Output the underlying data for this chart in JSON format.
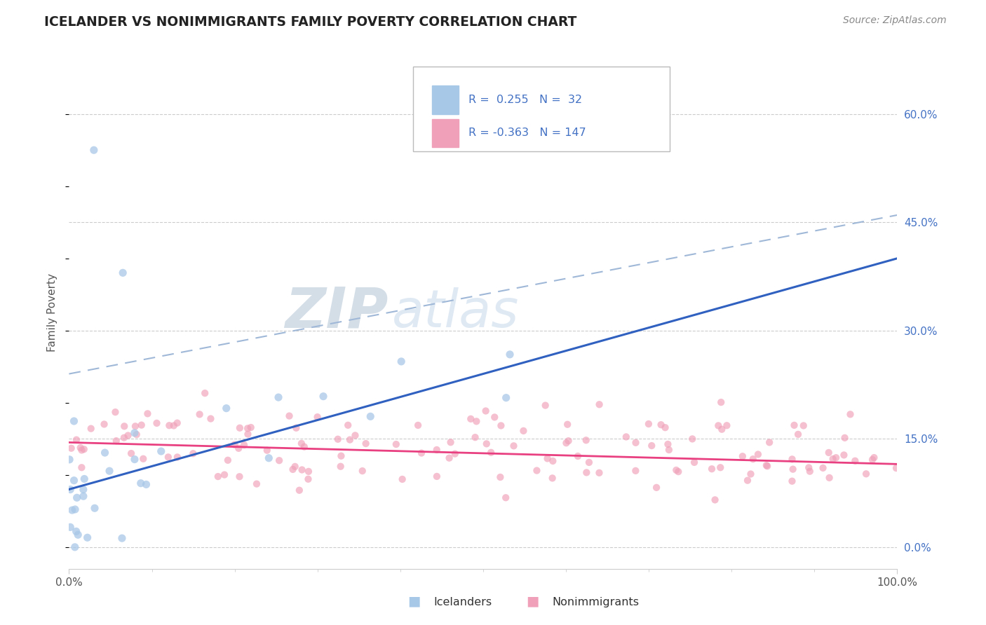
{
  "title": "ICELANDER VS NONIMMIGRANTS FAMILY POVERTY CORRELATION CHART",
  "source": "Source: ZipAtlas.com",
  "ylabel": "Family Poverty",
  "xlim": [
    0,
    100
  ],
  "ylim": [
    -3,
    68
  ],
  "yticks": [
    0,
    15,
    30,
    45,
    60
  ],
  "ytick_labels": [
    "0.0%",
    "15.0%",
    "30.0%",
    "45.0%",
    "60.0%"
  ],
  "xtick_labels": [
    "0.0%",
    "100.0%"
  ],
  "blue_scatter_color": "#a8c8e8",
  "pink_scatter_color": "#f0a0b8",
  "blue_line_color": "#3060c0",
  "pink_line_color": "#e84080",
  "blue_dash_color": "#a0b8d8",
  "grid_color": "#cccccc",
  "bg_color": "#ffffff",
  "label_color": "#4472c4",
  "R_icelander": "0.255",
  "N_icelander": "32",
  "R_nonimmigrant": "-0.363",
  "N_nonimmigrant": "147",
  "icelander_trend_y0": 8.0,
  "icelander_trend_y1": 40.0,
  "nonimmigrant_trend_y0": 14.5,
  "nonimmigrant_trend_y1": 11.5,
  "blue_dash_y0": 24.0,
  "blue_dash_y1": 46.0,
  "watermark_color": "#d8e8f0"
}
